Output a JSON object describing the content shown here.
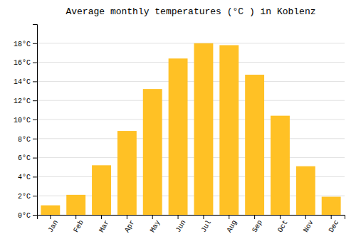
{
  "chart_data": {
    "type": "bar",
    "title": "Average monthly temperatures (°C ) in Koblenz",
    "categories": [
      "Jan",
      "Feb",
      "Mar",
      "Apr",
      "May",
      "Jun",
      "Jul",
      "Aug",
      "Sep",
      "Oct",
      "Nov",
      "Dec"
    ],
    "values": [
      1.0,
      2.1,
      5.2,
      8.8,
      13.2,
      16.4,
      18.0,
      17.8,
      14.7,
      10.4,
      5.1,
      1.9
    ],
    "color": "#FFC125",
    "ylim": [
      0,
      20
    ],
    "yticks": [
      {
        "value": 0,
        "label": "0°C"
      },
      {
        "value": 2,
        "label": "2°C"
      },
      {
        "value": 4,
        "label": "4°C"
      },
      {
        "value": 6,
        "label": "6°C"
      },
      {
        "value": 8,
        "label": "8°C"
      },
      {
        "value": 10,
        "label": "10°C"
      },
      {
        "value": 12,
        "label": "12°C"
      },
      {
        "value": 14,
        "label": "14°C"
      },
      {
        "value": 16,
        "label": "16°C"
      },
      {
        "value": 18,
        "label": "18°C"
      }
    ],
    "grid": true
  }
}
